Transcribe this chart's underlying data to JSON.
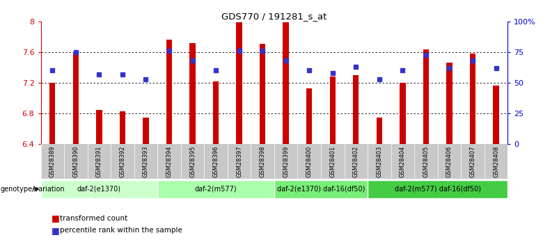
{
  "title": "GDS770 / 191281_s_at",
  "samples": [
    "GSM28389",
    "GSM28390",
    "GSM28391",
    "GSM28392",
    "GSM28393",
    "GSM28394",
    "GSM28395",
    "GSM28396",
    "GSM28397",
    "GSM28398",
    "GSM28399",
    "GSM28400",
    "GSM28401",
    "GSM28402",
    "GSM28403",
    "GSM28404",
    "GSM28405",
    "GSM28406",
    "GSM28407",
    "GSM28408"
  ],
  "bar_values": [
    7.2,
    7.6,
    6.85,
    6.83,
    6.75,
    7.76,
    7.72,
    7.22,
    7.99,
    7.71,
    7.99,
    7.13,
    7.28,
    7.3,
    6.75,
    7.2,
    7.64,
    7.46,
    7.58,
    7.16
  ],
  "blue_pct": [
    60,
    75,
    57,
    57,
    53,
    76,
    68,
    60,
    76,
    76,
    68,
    60,
    58,
    63,
    53,
    60,
    73,
    62,
    68,
    62
  ],
  "ylim_left": [
    6.4,
    8.0
  ],
  "ylim_right": [
    0,
    100
  ],
  "yticks_left": [
    6.4,
    6.8,
    7.2,
    7.6,
    8.0
  ],
  "ytick_labels_left": [
    "6.4",
    "6.8",
    "7.2",
    "7.6",
    "8"
  ],
  "yticks_right": [
    0,
    25,
    50,
    75,
    100
  ],
  "ytick_labels_right": [
    "0",
    "25",
    "50",
    "75",
    "100%"
  ],
  "hgrid_vals": [
    6.8,
    7.2,
    7.6
  ],
  "bar_color": "#CC0000",
  "blue_color": "#3333CC",
  "bar_width": 0.25,
  "groups": [
    {
      "label": "daf-2(e1370)",
      "start": 0,
      "end": 5
    },
    {
      "label": "daf-2(m577)",
      "start": 5,
      "end": 10
    },
    {
      "label": "daf-2(e1370) daf-16(df50)",
      "start": 10,
      "end": 14
    },
    {
      "label": "daf-2(m577) daf-16(df50)",
      "start": 14,
      "end": 20
    }
  ],
  "group_colors": [
    "#CCFFCC",
    "#AAFFAA",
    "#77EE77",
    "#44CC44"
  ],
  "genotype_label": "genotype/variation",
  "legend_bar_label": "transformed count",
  "legend_blue_label": "percentile rank within the sample",
  "tick_area_color": "#C8C8C8",
  "bg_color": "#FFFFFF",
  "spine_left_color": "#CC0000",
  "spine_right_color": "#0000CC"
}
